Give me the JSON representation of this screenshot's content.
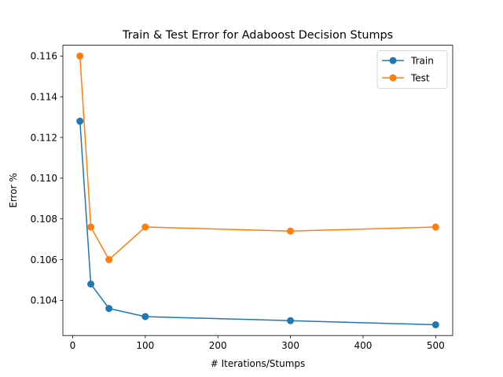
{
  "chart_data": {
    "type": "line",
    "title": "Train & Test Error for Adaboost Decision Stumps",
    "xlabel": "# Iterations/Stumps",
    "ylabel": "Error %",
    "xlim": [
      -13.5,
      523.5
    ],
    "ylim": [
      0.10227,
      0.11653
    ],
    "xticks": [
      0,
      100,
      200,
      300,
      400,
      500
    ],
    "xtick_labels": [
      "0",
      "100",
      "200",
      "300",
      "400",
      "500"
    ],
    "yticks": [
      0.104,
      0.106,
      0.108,
      0.11,
      0.112,
      0.114,
      0.116
    ],
    "ytick_labels": [
      "0.104",
      "0.106",
      "0.108",
      "0.110",
      "0.112",
      "0.114",
      "0.116"
    ],
    "grid": false,
    "legend_position": "top-right",
    "x": [
      10,
      25,
      50,
      100,
      300,
      500
    ],
    "series": [
      {
        "name": "Train",
        "color": "#1f77b4",
        "marker": "circle",
        "values": [
          0.1128,
          0.1048,
          0.1036,
          0.1032,
          0.103,
          0.1028
        ]
      },
      {
        "name": "Test",
        "color": "#ff7f0e",
        "marker": "circle",
        "values": [
          0.116,
          0.1076,
          0.106,
          0.1076,
          0.1074,
          0.1076
        ]
      }
    ]
  }
}
